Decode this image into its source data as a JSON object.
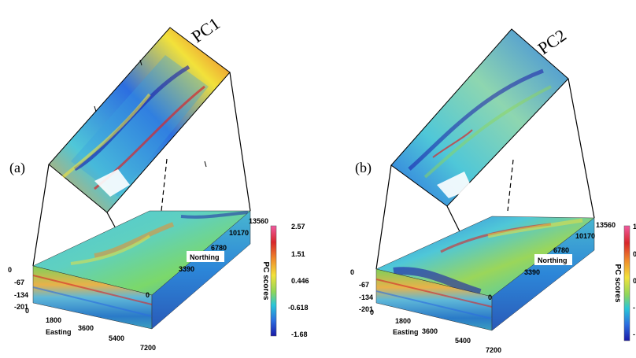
{
  "panels": [
    {
      "label": "(a)",
      "pc_title": "PC1",
      "depth_ticks": [
        "0",
        "-67",
        "-134",
        "-201"
      ],
      "easting_ticks": [
        "0",
        "1800",
        "3600",
        "5400",
        "7200"
      ],
      "easting_label": "Easting",
      "northing_ticks": [
        "0",
        "3390",
        "6780",
        "10170",
        "13560"
      ],
      "northing_label": "Northing",
      "colorbar": {
        "title": "PC scores",
        "ticks": [
          "2.57",
          "1.51",
          "0.446",
          "-0.618",
          "-1.68"
        ]
      }
    },
    {
      "label": "(b)",
      "pc_title": "PC2",
      "depth_ticks": [
        "0",
        "-67",
        "-134",
        "-201"
      ],
      "easting_ticks": [
        "0",
        "1800",
        "3600",
        "5400",
        "7200"
      ],
      "easting_label": "Easting",
      "northing_ticks": [
        "0",
        "3390",
        "6780",
        "10170",
        "13560"
      ],
      "northing_label": "Northing",
      "colorbar": {
        "title": "PC scores",
        "ticks": [
          "1",
          "0",
          "0",
          "-",
          "-"
        ]
      }
    }
  ],
  "colors": {
    "deep_blue": "#1a1aa8",
    "blue": "#2c6ee0",
    "cyan": "#29c6d8",
    "green": "#8ed65a",
    "yellow": "#f2e23a",
    "orange": "#f08a2a",
    "red": "#d8262a",
    "magenta": "#f05aa0"
  }
}
